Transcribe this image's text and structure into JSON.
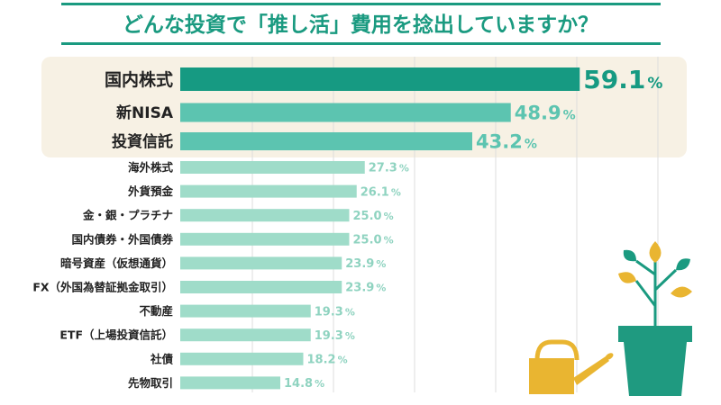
{
  "chart_data": {
    "type": "bar",
    "orientation": "horizontal",
    "title": "どんな投資で「推し活」費用を捻出していますか？",
    "unit": "%",
    "xlim": [
      0,
      60
    ],
    "categories": [
      "国内株式",
      "新NISA",
      "投資信託",
      "海外株式",
      "外貨預金",
      "金・銀・プラチナ",
      "国内債券・外国債券",
      "暗号資産（仮想通貨）",
      "FX（外国為替証拠金取引）",
      "不動産",
      "ETF（上場投資信託）",
      "社債",
      "先物取引"
    ],
    "values": [
      59.1,
      48.9,
      43.2,
      27.3,
      26.1,
      25.0,
      25.0,
      23.9,
      23.9,
      19.3,
      19.3,
      18.2,
      14.8
    ],
    "value_labels": [
      "59.1",
      "48.9",
      "43.2",
      "27.3",
      "26.1",
      "25.0",
      "25.0",
      "23.9",
      "23.9",
      "19.3",
      "19.3",
      "18.2",
      "14.8"
    ],
    "highlighted_top": 3
  },
  "colors": {
    "title": "#1a9a80",
    "top_bar": "#169a82",
    "mid_bar": "#5cc4b0",
    "other_bar": "#9fdcc9",
    "other_label": "#8fd3c0",
    "highlight_bg": "#f7f1e4",
    "grid": "#dddddd",
    "text": "#222222",
    "can": "#e9b531",
    "pot": "#1f9a80",
    "leaf_yellow": "#e9b531",
    "leaf_green": "#1a9a80"
  }
}
